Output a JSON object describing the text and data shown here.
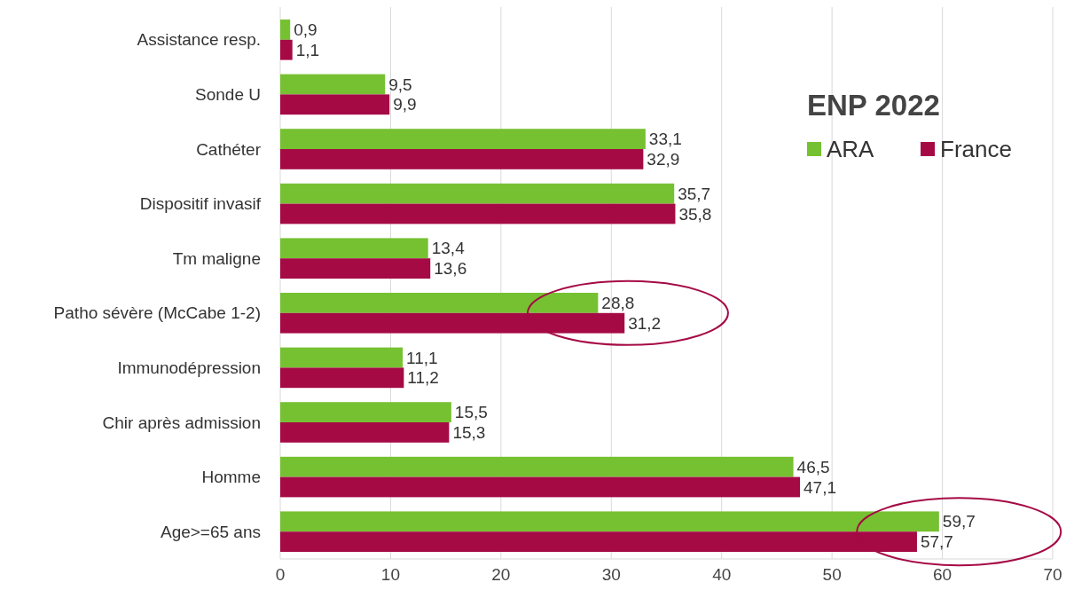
{
  "chart_data": {
    "type": "bar",
    "orientation": "horizontal",
    "legend_title": "ENP 2022",
    "legend": "top right",
    "grid": "x",
    "categories": [
      "Assistance resp.",
      "Sonde U",
      "Cathéter",
      "Dispositif invasif",
      "Tm maligne",
      "Patho sévère (McCabe 1-2)",
      "Immunodépression",
      "Chir après admission",
      "Homme",
      "Age>=65 ans"
    ],
    "series": [
      {
        "name": "ARA",
        "color": "#76c132",
        "values": [
          0.9,
          9.5,
          33.1,
          35.7,
          13.4,
          28.8,
          11.1,
          15.5,
          46.5,
          59.7
        ],
        "value_labels": [
          "0,9",
          "9,5",
          "33,1",
          "35,7",
          "13,4",
          "28,8",
          "11,1",
          "15,5",
          "46,5",
          "59,7"
        ]
      },
      {
        "name": "France",
        "color": "#a50a45",
        "values": [
          1.1,
          9.9,
          32.9,
          35.8,
          13.6,
          31.2,
          11.2,
          15.3,
          47.1,
          57.7
        ],
        "value_labels": [
          "1,1",
          "9,9",
          "32,9",
          "35,8",
          "13,6",
          "31,2",
          "11,2",
          "15,3",
          "47,1",
          "57,7"
        ]
      }
    ],
    "xlim": [
      0,
      70
    ],
    "xticks": [
      0,
      10,
      20,
      30,
      40,
      50,
      60,
      70
    ]
  }
}
